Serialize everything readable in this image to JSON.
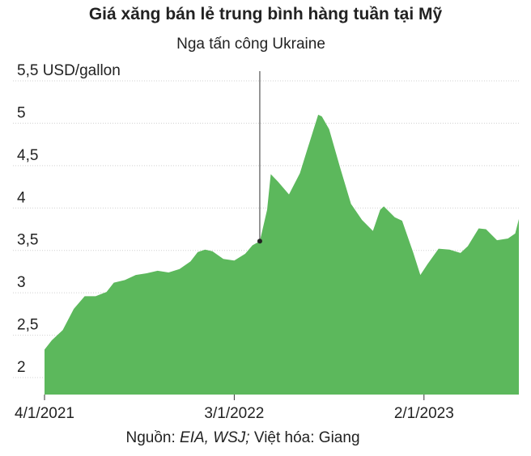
{
  "chart_data": {
    "type": "area",
    "title": "Giá xăng bán lẻ trung bình hàng tuần tại Mỹ",
    "ylabel": "USD/gallon",
    "ylim": [
      1.8,
      5.5
    ],
    "y_ticks": [
      {
        "value": 5.5,
        "label": "5,5 USD/gallon"
      },
      {
        "value": 5,
        "label": "5"
      },
      {
        "value": 4.5,
        "label": "4,5"
      },
      {
        "value": 4,
        "label": "4"
      },
      {
        "value": 3.5,
        "label": "3,5"
      },
      {
        "value": 3,
        "label": "3"
      },
      {
        "value": 2.5,
        "label": "2,5"
      },
      {
        "value": 2,
        "label": "2"
      }
    ],
    "xlim": [
      "2021-01-04",
      "2023-07-03"
    ],
    "x_ticks": [
      {
        "date": "2021-01-04",
        "label": "4/1/2021"
      },
      {
        "date": "2022-01-03",
        "label": "3/1/2022"
      },
      {
        "date": "2023-01-02",
        "label": "2/1/2023"
      }
    ],
    "grid": true,
    "series": [
      {
        "color": "#5cb85c",
        "points": [
          [
            "2021-01-04",
            2.33
          ],
          [
            "2021-01-18",
            2.44
          ],
          [
            "2021-02-08",
            2.56
          ],
          [
            "2021-03-01",
            2.81
          ],
          [
            "2021-03-22",
            2.96
          ],
          [
            "2021-04-12",
            2.96
          ],
          [
            "2021-05-03",
            3.01
          ],
          [
            "2021-05-17",
            3.12
          ],
          [
            "2021-06-07",
            3.15
          ],
          [
            "2021-06-28",
            3.21
          ],
          [
            "2021-07-19",
            3.23
          ],
          [
            "2021-08-09",
            3.26
          ],
          [
            "2021-08-30",
            3.24
          ],
          [
            "2021-09-20",
            3.28
          ],
          [
            "2021-10-11",
            3.37
          ],
          [
            "2021-10-25",
            3.48
          ],
          [
            "2021-11-08",
            3.51
          ],
          [
            "2021-11-22",
            3.49
          ],
          [
            "2021-12-13",
            3.4
          ],
          [
            "2022-01-03",
            3.38
          ],
          [
            "2022-01-24",
            3.46
          ],
          [
            "2022-02-07",
            3.56
          ],
          [
            "2022-02-21",
            3.61
          ],
          [
            "2022-03-07",
            3.98
          ],
          [
            "2022-03-14",
            4.4
          ],
          [
            "2022-03-28",
            4.31
          ],
          [
            "2022-04-18",
            4.16
          ],
          [
            "2022-05-09",
            4.41
          ],
          [
            "2022-05-23",
            4.69
          ],
          [
            "2022-06-13",
            5.1
          ],
          [
            "2022-06-20",
            5.08
          ],
          [
            "2022-07-04",
            4.93
          ],
          [
            "2022-07-25",
            4.48
          ],
          [
            "2022-08-15",
            4.05
          ],
          [
            "2022-09-05",
            3.86
          ],
          [
            "2022-09-26",
            3.73
          ],
          [
            "2022-10-10",
            3.98
          ],
          [
            "2022-10-17",
            4.02
          ],
          [
            "2022-11-07",
            3.89
          ],
          [
            "2022-11-21",
            3.85
          ],
          [
            "2022-12-12",
            3.48
          ],
          [
            "2022-12-26",
            3.21
          ],
          [
            "2023-01-09",
            3.34
          ],
          [
            "2023-01-30",
            3.52
          ],
          [
            "2023-02-20",
            3.51
          ],
          [
            "2023-03-13",
            3.47
          ],
          [
            "2023-03-27",
            3.55
          ],
          [
            "2023-04-17",
            3.76
          ],
          [
            "2023-05-01",
            3.75
          ],
          [
            "2023-05-22",
            3.62
          ],
          [
            "2023-06-12",
            3.64
          ],
          [
            "2023-06-26",
            3.7
          ],
          [
            "2023-07-03",
            3.87
          ]
        ]
      }
    ],
    "annotations": [
      {
        "text": "Nga tấn công Ukraine",
        "date": "2022-02-21",
        "value": 3.61
      }
    ]
  },
  "source": {
    "prefix": "Nguồn: ",
    "italic": "EIA, WSJ;",
    "suffix": " Việt hóa: Giang"
  }
}
